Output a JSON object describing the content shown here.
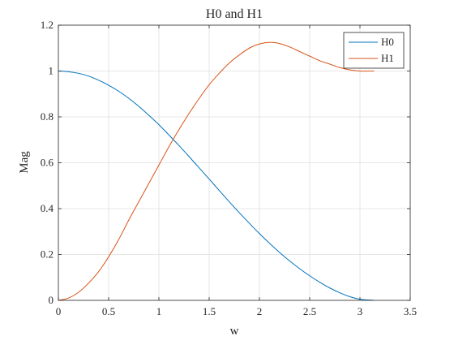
{
  "chart_data": {
    "type": "line",
    "title": "H0 and H1",
    "xlabel": "w",
    "ylabel": "Mag",
    "xlim": [
      0,
      3.5
    ],
    "ylim": [
      0,
      1.2
    ],
    "xticks": [
      0,
      0.5,
      1,
      1.5,
      2,
      2.5,
      3,
      3.5
    ],
    "xtick_labels": [
      "0",
      "0.5",
      "1",
      "1.5",
      "2",
      "2.5",
      "3",
      "3.5"
    ],
    "yticks": [
      0,
      0.2,
      0.4,
      0.6,
      0.8,
      1,
      1.2
    ],
    "ytick_labels": [
      "0",
      "0.2",
      "0.4",
      "0.6",
      "0.8",
      "1",
      "1.2"
    ],
    "grid": true,
    "legend_position": "top-right",
    "series": [
      {
        "name": "H0",
        "color": "#0072bd",
        "x": [
          0,
          0.1,
          0.2,
          0.3,
          0.4,
          0.5,
          0.6,
          0.7,
          0.8,
          0.9,
          1.0,
          1.1,
          1.2,
          1.3,
          1.4,
          1.5,
          1.6,
          1.7,
          1.8,
          1.9,
          2.0,
          2.1,
          2.2,
          2.3,
          2.4,
          2.5,
          2.6,
          2.7,
          2.8,
          2.9,
          3.0,
          3.1416
        ],
        "y": [
          1.0,
          0.997,
          0.99,
          0.978,
          0.96,
          0.938,
          0.912,
          0.881,
          0.846,
          0.807,
          0.766,
          0.721,
          0.675,
          0.627,
          0.578,
          0.529,
          0.479,
          0.43,
          0.382,
          0.336,
          0.291,
          0.249,
          0.209,
          0.172,
          0.138,
          0.107,
          0.079,
          0.054,
          0.033,
          0.016,
          0.005,
          0.0
        ]
      },
      {
        "name": "H1",
        "color": "#d95319",
        "x": [
          0,
          0.1,
          0.2,
          0.3,
          0.4,
          0.5,
          0.6,
          0.7,
          0.8,
          0.9,
          1.0,
          1.1,
          1.2,
          1.3,
          1.4,
          1.5,
          1.6,
          1.7,
          1.8,
          1.9,
          2.0,
          2.1,
          2.2,
          2.3,
          2.4,
          2.5,
          2.6,
          2.7,
          2.8,
          2.9,
          3.0,
          3.1416
        ],
        "y": [
          0.0,
          0.01,
          0.035,
          0.075,
          0.125,
          0.19,
          0.265,
          0.35,
          0.43,
          0.51,
          0.59,
          0.67,
          0.745,
          0.815,
          0.88,
          0.94,
          0.99,
          1.035,
          1.07,
          1.1,
          1.118,
          1.125,
          1.12,
          1.105,
          1.085,
          1.065,
          1.045,
          1.03,
          1.015,
          1.005,
          1.0,
          1.0
        ]
      }
    ]
  }
}
